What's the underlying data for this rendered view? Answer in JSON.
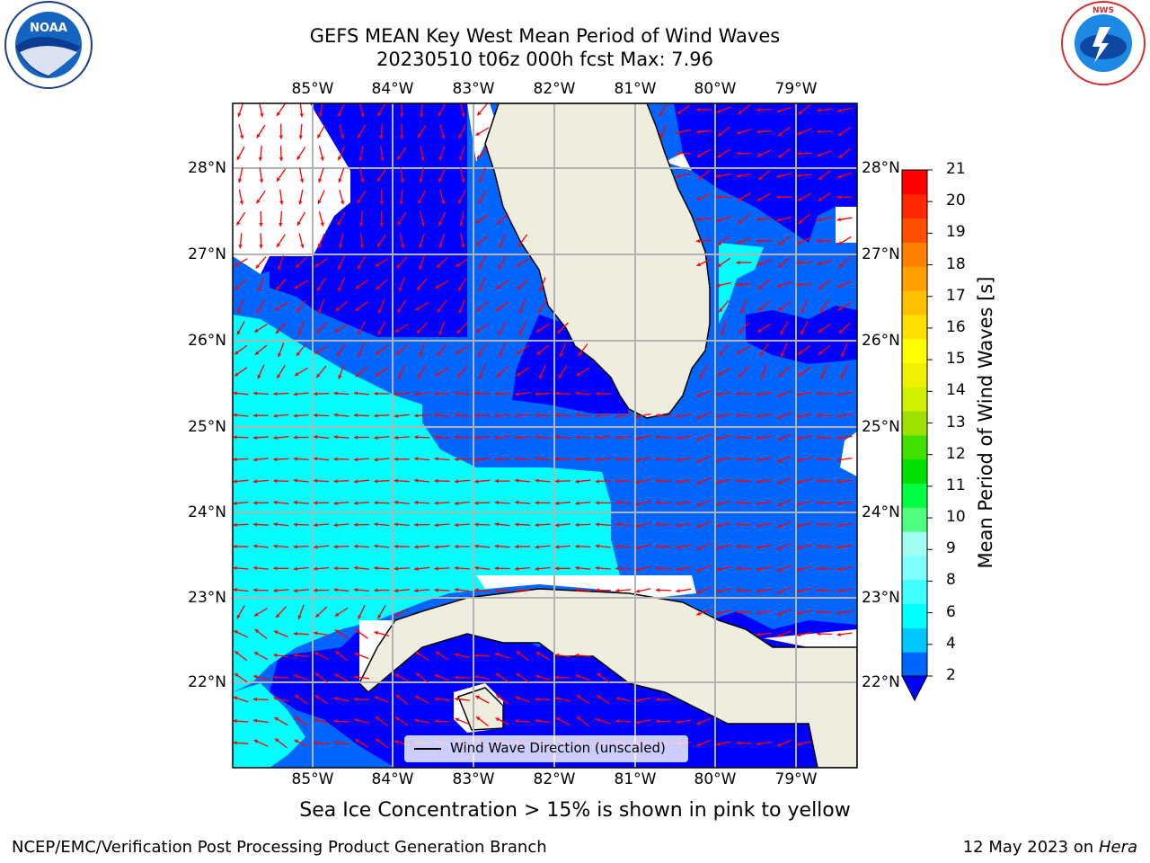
{
  "title_line1": "GEFS MEAN Key West Mean Period of Wind Waves",
  "title_line2": "20230510 t06z 000h fcst   Max: 7.96",
  "lon_labels": [
    "85°W",
    "84°W",
    "83°W",
    "82°W",
    "81°W",
    "80°W",
    "79°W"
  ],
  "lat_labels": [
    "28°N",
    "27°N",
    "26°N",
    "25°N",
    "24°N",
    "23°N",
    "22°N"
  ],
  "legend": {
    "line_label": "Wind Wave Direction (unscaled)"
  },
  "colorbar": {
    "label": "Mean Period of Wind Waves [s]",
    "ticks": [
      "2",
      "4",
      "6",
      "8",
      "9",
      "10",
      "11",
      "12",
      "13",
      "14",
      "15",
      "16",
      "17",
      "18",
      "19",
      "20",
      "21"
    ],
    "colors": [
      "#0000ff",
      "#0066ff",
      "#00c8ff",
      "#00ffff",
      "#40ffff",
      "#80ffff",
      "#a0ffee",
      "#50ff80",
      "#00ff40",
      "#00e000",
      "#40e000",
      "#a0e000",
      "#d0f000",
      "#f0f000",
      "#ffff00",
      "#ffe000",
      "#ffc000",
      "#ffa000",
      "#ff8000",
      "#ff5000",
      "#ff2800",
      "#ff0000"
    ]
  },
  "footer": {
    "note": "Sea Ice Concentration > 15% is shown in pink to yellow",
    "credit": "NCEP/EMC/Verification Post Processing Product Generation Branch",
    "date": "12 May 2023 on",
    "machine": "Hera"
  },
  "logos": {
    "left": "NOAA",
    "right": "NATIONAL WEATHER SERVICE"
  },
  "arrow_color": "#ff0000",
  "land_color": "#efedde"
}
